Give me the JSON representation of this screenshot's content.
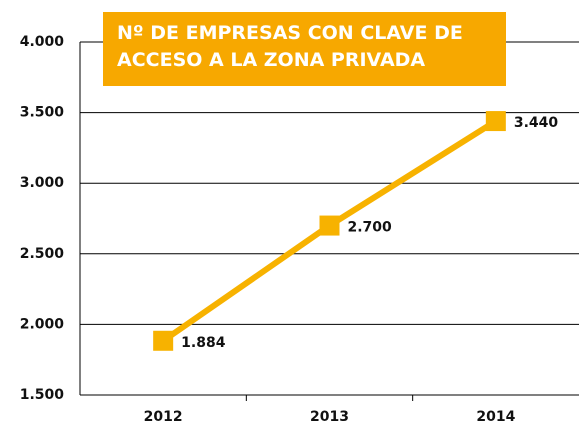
{
  "chart_data": {
    "type": "line",
    "title": "Nº DE EMPRESAS CON CLAVE DE ACCESO A LA ZONA PRIVADA",
    "categories": [
      "2012",
      "2013",
      "2014"
    ],
    "series": [
      {
        "name": "Nº de empresas",
        "color": "#f7b200",
        "values": [
          1884,
          2700,
          3440
        ],
        "value_labels": [
          "1.884",
          "2.700",
          "3.440"
        ]
      }
    ],
    "ylim": [
      1500,
      4000
    ],
    "yticks": [
      {
        "value": 1500,
        "label": "1.500"
      },
      {
        "value": 2000,
        "label": "2.000"
      },
      {
        "value": 2500,
        "label": "2.500"
      },
      {
        "value": 3000,
        "label": "3.000"
      },
      {
        "value": 3500,
        "label": "3.500"
      },
      {
        "value": 4000,
        "label": "4.000"
      }
    ],
    "grid": true
  }
}
